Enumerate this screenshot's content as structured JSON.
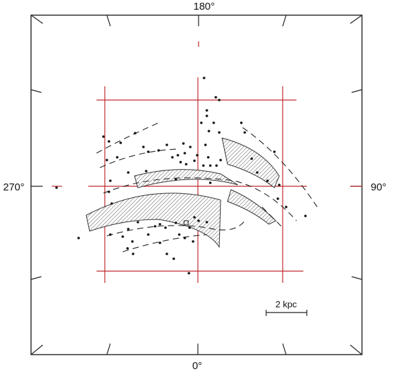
{
  "labels": {
    "top": "180°",
    "bottom": "0°",
    "left": "270°",
    "right": "90°",
    "scale": "2 kpc"
  }
}
